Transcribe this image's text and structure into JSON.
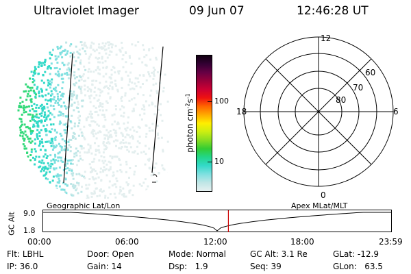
{
  "header": {
    "title": "Ultraviolet Imager",
    "date": "09 Jun 07",
    "time": "12:46:28 UT"
  },
  "colorbar": {
    "label_main": "photon cm",
    "label_exp1": "-2",
    "label_mid": "s",
    "label_exp2": "-1",
    "ticks": [
      "100",
      "10"
    ],
    "colors": [
      "#e6f0f0",
      "#bfe6e6",
      "#7fe0e0",
      "#33d9c8",
      "#22d68a",
      "#33cc33",
      "#88dd22",
      "#ccee11",
      "#ffee00",
      "#ffaa00",
      "#ff6600",
      "#ee1111",
      "#cc0033",
      "#99003a",
      "#660044",
      "#330033",
      "#110011"
    ]
  },
  "polar": {
    "hour_labels": {
      "top": "12",
      "left": "18",
      "right": "6",
      "bottom": "0"
    },
    "lat_labels": [
      "60",
      "70",
      "80"
    ]
  },
  "timeline": {
    "left_title": "Geographic Lat/Lon",
    "right_title": "Apex MLat/MLT",
    "axis_label": "GC Alt",
    "y_top": "9.0",
    "y_bottom": "1.8",
    "x_ticks": [
      "00:00",
      "06:00",
      "12:00",
      "18:00",
      "23:59"
    ],
    "current_time_fraction": 0.5323
  },
  "info": {
    "row1": [
      {
        "label": "Flt:",
        "value": "LBHL"
      },
      {
        "label": "Door:",
        "value": "Open"
      },
      {
        "label": "Mode:",
        "value": "Normal"
      },
      {
        "label": "GC Alt:",
        "value": "3.1 Re"
      },
      {
        "label": "GLat:",
        "value": "-12.9"
      }
    ],
    "row2": [
      {
        "label": "IP:",
        "value": "36.0"
      },
      {
        "label": "Gain:",
        "value": "14"
      },
      {
        "label": "Dsp:",
        "value": "1.9"
      },
      {
        "label": "Seq:",
        "value": "39"
      },
      {
        "label": "GLon:",
        "value": "63.5"
      }
    ]
  }
}
